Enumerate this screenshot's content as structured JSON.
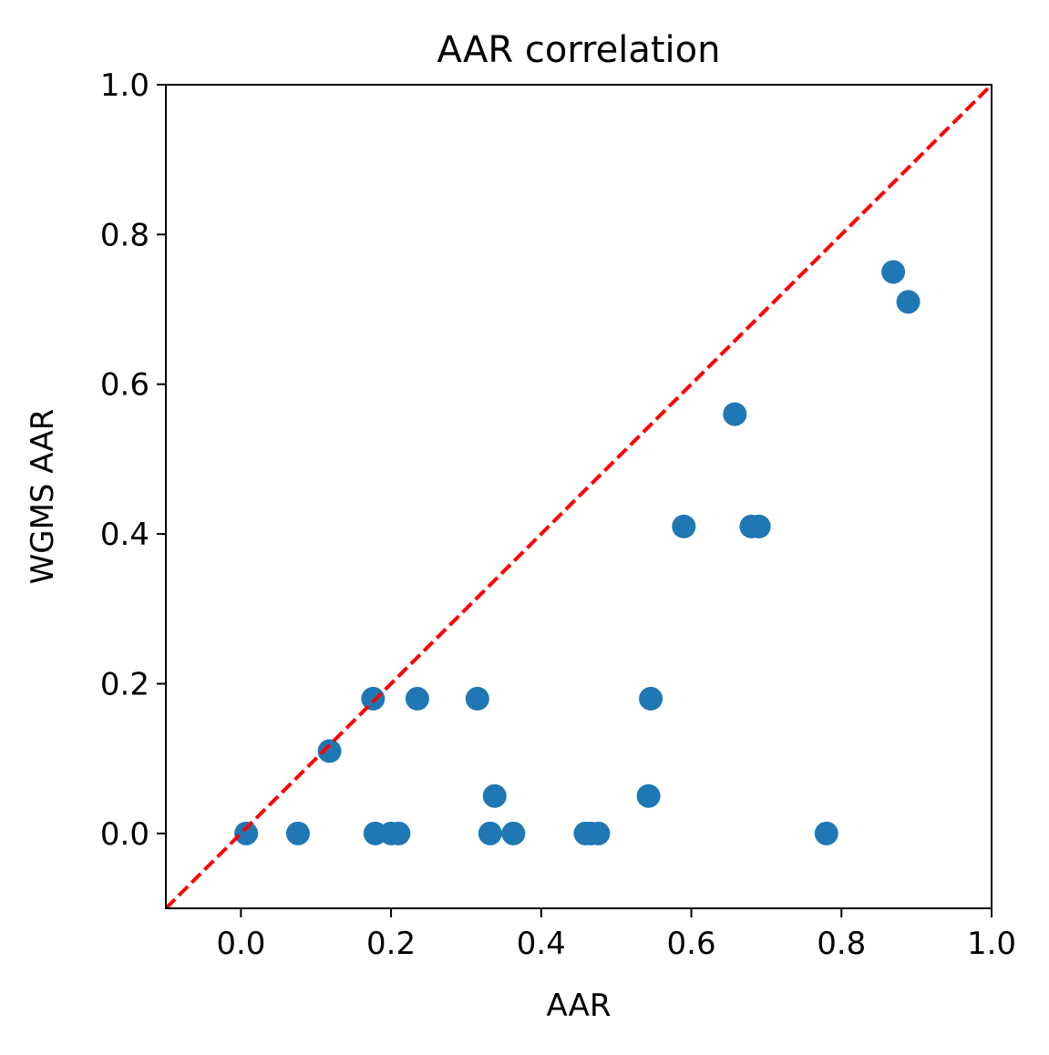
{
  "chart_data": {
    "type": "scatter",
    "title": "AAR correlation",
    "xlabel": "AAR",
    "ylabel": "WGMS AAR",
    "xlim": [
      -0.1,
      1.0
    ],
    "ylim": [
      -0.1,
      1.0
    ],
    "xticks": [
      "0.0",
      "0.2",
      "0.4",
      "0.6",
      "0.8",
      "1.0"
    ],
    "yticks": [
      "0.0",
      "0.2",
      "0.4",
      "0.6",
      "0.8",
      "1.0"
    ],
    "grid": false,
    "series": [
      {
        "color": "#1f77b4",
        "points": [
          {
            "x": 0.007,
            "y": 0.0
          },
          {
            "x": 0.076,
            "y": 0.0
          },
          {
            "x": 0.118,
            "y": 0.11
          },
          {
            "x": 0.176,
            "y": 0.18
          },
          {
            "x": 0.179,
            "y": 0.0
          },
          {
            "x": 0.2,
            "y": 0.0
          },
          {
            "x": 0.21,
            "y": 0.0
          },
          {
            "x": 0.235,
            "y": 0.18
          },
          {
            "x": 0.315,
            "y": 0.18
          },
          {
            "x": 0.332,
            "y": 0.0
          },
          {
            "x": 0.338,
            "y": 0.05
          },
          {
            "x": 0.363,
            "y": 0.0
          },
          {
            "x": 0.459,
            "y": 0.0
          },
          {
            "x": 0.466,
            "y": 0.0
          },
          {
            "x": 0.476,
            "y": 0.0
          },
          {
            "x": 0.543,
            "y": 0.05
          },
          {
            "x": 0.546,
            "y": 0.18
          },
          {
            "x": 0.59,
            "y": 0.41
          },
          {
            "x": 0.658,
            "y": 0.56
          },
          {
            "x": 0.68,
            "y": 0.41
          },
          {
            "x": 0.69,
            "y": 0.41
          },
          {
            "x": 0.78,
            "y": 0.0
          },
          {
            "x": 0.869,
            "y": 0.75
          },
          {
            "x": 0.889,
            "y": 0.71
          }
        ]
      }
    ],
    "reference_line": {
      "from": [
        -0.1,
        -0.1
      ],
      "to": [
        1.0,
        1.0
      ],
      "style": "dashed",
      "color": "#ff0000"
    }
  }
}
